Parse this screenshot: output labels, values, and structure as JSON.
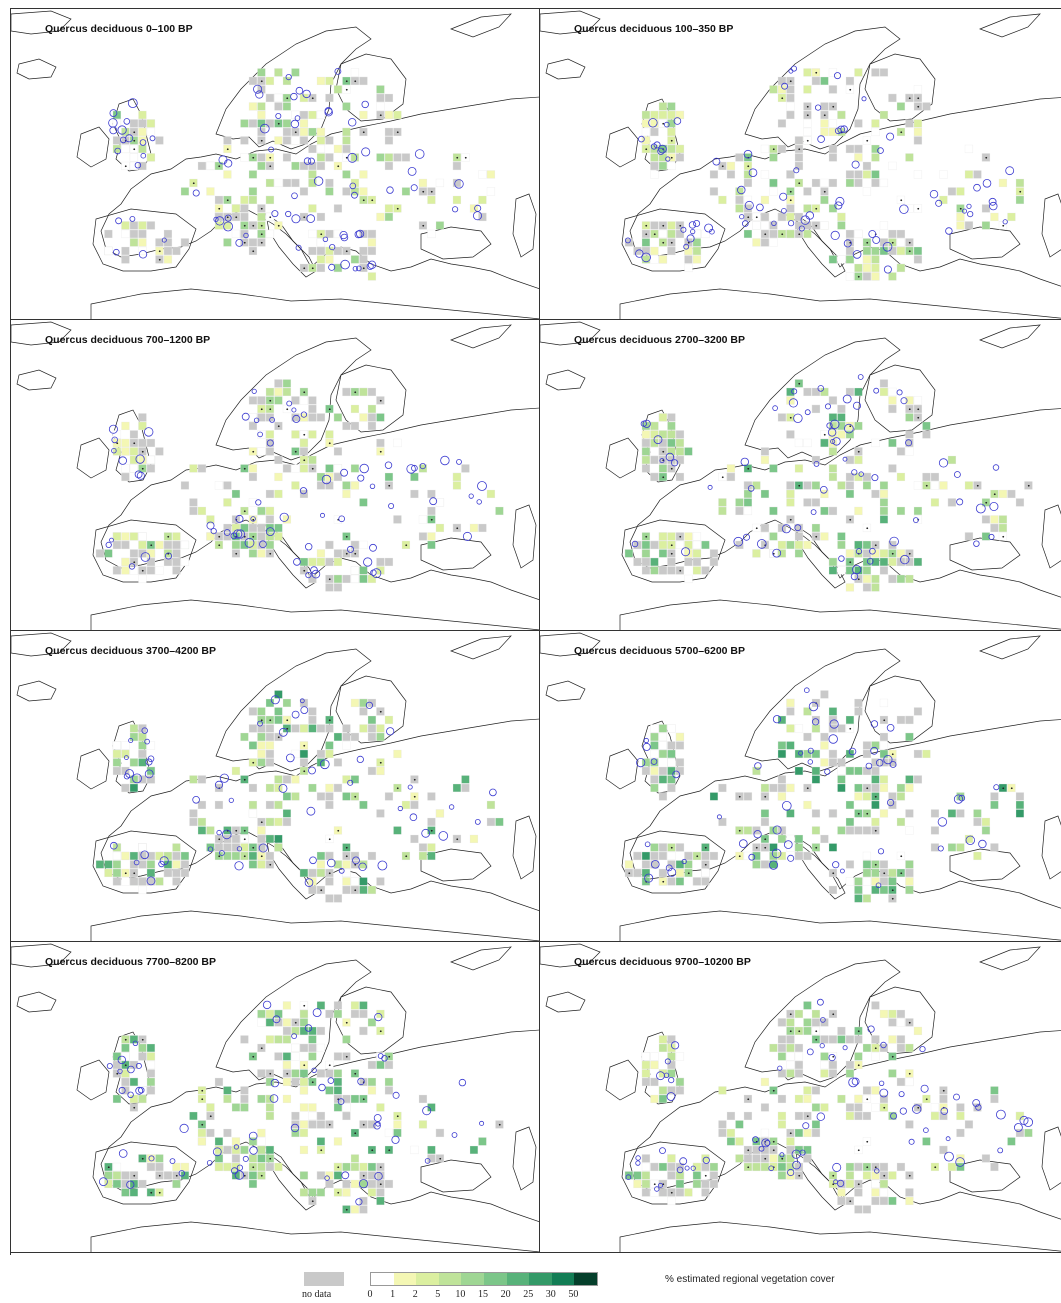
{
  "panels": [
    {
      "title": "Quercus deciduous 0–100 BP",
      "intensity": 0.35,
      "sites": 0.8,
      "seed": 11
    },
    {
      "title": "Quercus deciduous 100–350 BP",
      "intensity": 0.4,
      "sites": 0.75,
      "seed": 23
    },
    {
      "title": "Quercus deciduous 700–1200 BP",
      "intensity": 0.5,
      "sites": 0.7,
      "seed": 37
    },
    {
      "title": "Quercus deciduous 2700–3200 BP",
      "intensity": 0.6,
      "sites": 0.65,
      "seed": 41
    },
    {
      "title": "Quercus deciduous 3700–4200 BP",
      "intensity": 0.7,
      "sites": 0.6,
      "seed": 53
    },
    {
      "title": "Quercus deciduous 5700–6200 BP",
      "intensity": 0.72,
      "sites": 0.55,
      "seed": 67
    },
    {
      "title": "Quercus deciduous 7700–8200 BP",
      "intensity": 0.65,
      "sites": 0.6,
      "seed": 79
    },
    {
      "title": "Quercus deciduous 9700–10200 BP",
      "intensity": 0.5,
      "sites": 0.7,
      "seed": 97
    }
  ],
  "legend": {
    "no_data_label": "no data",
    "no_data_color": "#c9c9c9",
    "ticks": [
      "0",
      "1",
      "2",
      "5",
      "10",
      "15",
      "20",
      "25",
      "30",
      "50"
    ],
    "colors": [
      "#ffffff",
      "#f4f7b4",
      "#dbefa0",
      "#bfe39a",
      "#9fd694",
      "#7cc689",
      "#58b27a",
      "#349a68",
      "#137d55",
      "#053f2b"
    ],
    "caption": "% estimated regional vegetation cover"
  },
  "site_marker_color": "#3a3ad0"
}
